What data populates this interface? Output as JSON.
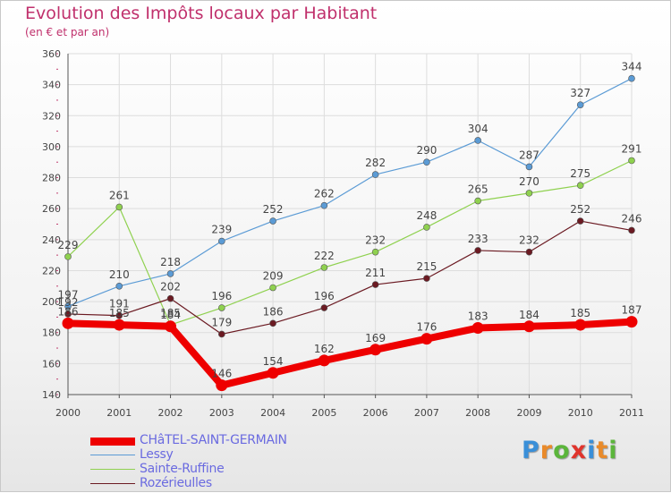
{
  "title": "Evolution des Impôts locaux par Habitant",
  "subtitle": "(en € et par an)",
  "logo": {
    "letters": [
      "P",
      "r",
      "o",
      "x",
      "i",
      "t",
      "i"
    ],
    "colors": [
      "#3a8fd8",
      "#e98a2a",
      "#5bb53b",
      "#e0342c",
      "#3a8fd8",
      "#e98a2a",
      "#5bb53b"
    ]
  },
  "chart_data": {
    "type": "line",
    "x": [
      "2000",
      "2001",
      "2002",
      "2003",
      "2004",
      "2005",
      "2006",
      "2007",
      "2008",
      "2009",
      "2010",
      "2011"
    ],
    "ylim": [
      140,
      360
    ],
    "yticks": [
      "140",
      "160",
      "180",
      "200",
      "220",
      "240",
      "260",
      "280",
      "300",
      "320",
      "340",
      "360"
    ],
    "grid": true,
    "legend_position": "bottom-left",
    "series": [
      {
        "name": "CHâTEL-SAINT-GERMAIN",
        "color": "#ee0000",
        "values": [
          186,
          185,
          184,
          146,
          154,
          162,
          169,
          176,
          183,
          184,
          185,
          187
        ],
        "thick": true
      },
      {
        "name": "Lessy",
        "color": "#5b9bd5",
        "values": [
          197,
          210,
          218,
          239,
          252,
          262,
          282,
          290,
          304,
          287,
          327,
          344
        ]
      },
      {
        "name": "Sainte-Ruffine",
        "color": "#8fd14f",
        "values": [
          229,
          261,
          185,
          196,
          209,
          222,
          232,
          248,
          265,
          270,
          275,
          291
        ]
      },
      {
        "name": "Rozérieulles",
        "color": "#6b1a22",
        "values": [
          192,
          191,
          202,
          179,
          186,
          196,
          211,
          215,
          233,
          232,
          252,
          246
        ]
      }
    ]
  }
}
